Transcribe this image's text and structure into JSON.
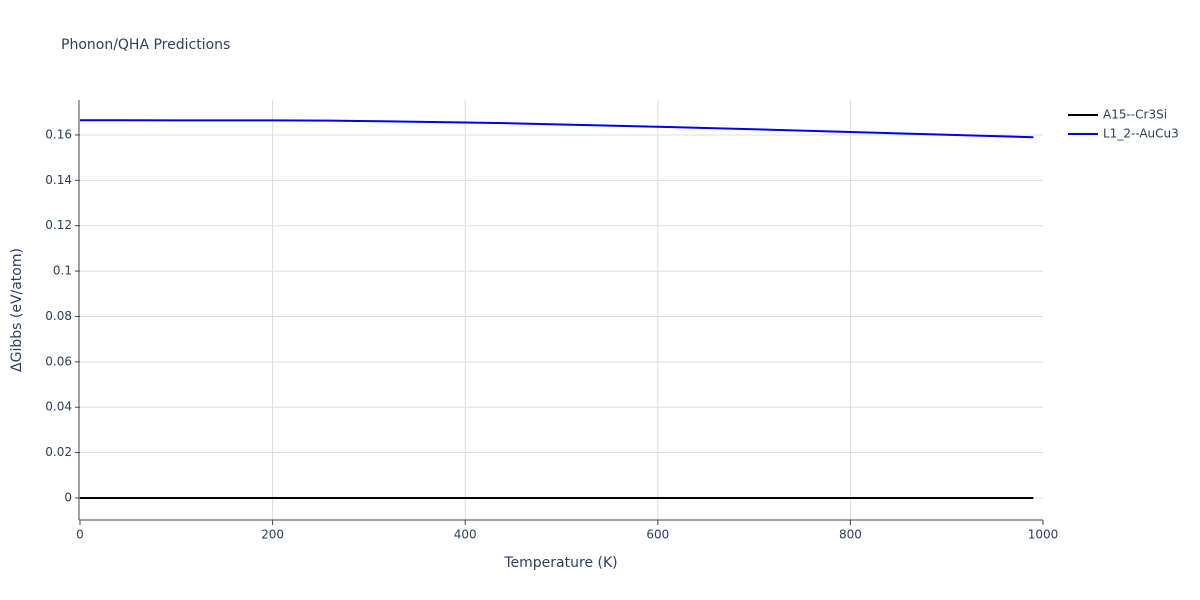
{
  "chart_data": {
    "type": "line",
    "title": "Phonon/QHA Predictions",
    "x_label": "Temperature (K)",
    "y_label": "ΔGibbs (eV/atom)",
    "x": [
      0,
      100,
      200,
      260,
      300,
      400,
      440,
      500,
      600,
      700,
      800,
      900,
      990
    ],
    "series": [
      {
        "name": "A15--Cr3Si",
        "color": "#000000",
        "values": [
          0,
          0,
          0,
          0,
          0,
          0,
          0,
          0,
          0,
          0,
          0,
          0,
          0
        ]
      },
      {
        "name": "L1_2--AuCu3",
        "color": "#0000ee",
        "values": [
          0.1665,
          0.1664,
          0.1664,
          0.1663,
          0.1661,
          0.1655,
          0.1652,
          0.1646,
          0.1636,
          0.1625,
          0.1613,
          0.1601,
          0.159
        ]
      }
    ],
    "xlim": [
      0,
      1000
    ],
    "xticks": [
      0,
      200,
      400,
      600,
      800,
      1000
    ],
    "ylim": [
      -0.0097,
      0.1754
    ],
    "yticks": [
      0,
      0.02,
      0.04,
      0.06,
      0.08,
      0.1,
      0.12,
      0.14,
      0.16
    ],
    "grid": true,
    "legend": "top-right"
  }
}
